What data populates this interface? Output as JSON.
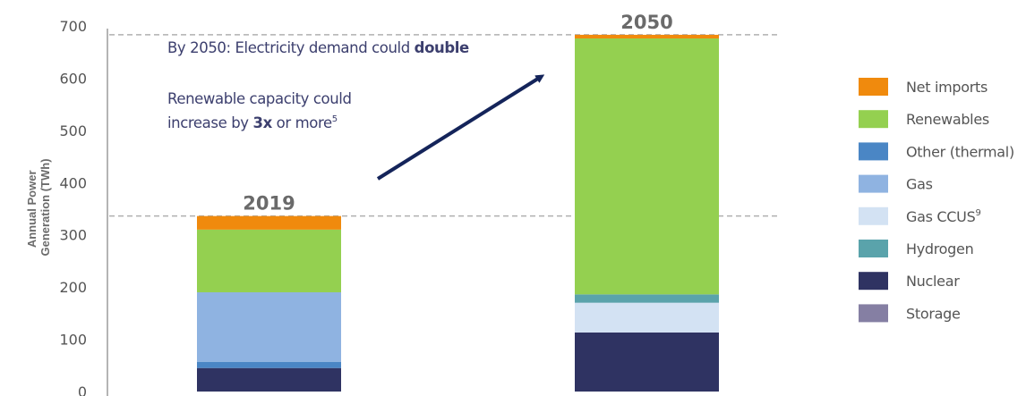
{
  "chart_data": {
    "type": "bar",
    "stacked": true,
    "categories": [
      "2019",
      "2050"
    ],
    "ylabel": "Annual Power Generation (TWh)",
    "ylim": [
      0,
      700
    ],
    "yticks": [
      0,
      100,
      200,
      300,
      400,
      500,
      600,
      700
    ],
    "series": [
      {
        "name": "Storage",
        "color": "#857fa3",
        "values": [
          0,
          0
        ]
      },
      {
        "name": "Nuclear",
        "color": "#2f3362",
        "values": [
          45,
          113
        ]
      },
      {
        "name": "Hydrogen",
        "color": "#5aa3ab",
        "values": [
          0,
          0
        ]
      },
      {
        "name": "Gas CCUS",
        "legend_sup": "9",
        "color": "#d3e2f3",
        "values": [
          0,
          57
        ]
      },
      {
        "name": "Other (thermal)",
        "color": "#4a86c5",
        "values": [
          12,
          0
        ]
      },
      {
        "name": "Gas",
        "color": "#8fb3e1",
        "values": [
          133,
          0
        ]
      },
      {
        "name": "Hydrogen",
        "color": "#5aa3ab",
        "values": [
          0,
          16
        ]
      },
      {
        "name": "Renewables",
        "color": "#94d050",
        "values": [
          120,
          490
        ]
      },
      {
        "name": "Net imports",
        "color": "#f08a0d",
        "values": [
          26,
          7
        ]
      }
    ],
    "legend": [
      {
        "label": "Net imports",
        "sup": "",
        "color": "#f08a0d"
      },
      {
        "label": "Renewables",
        "sup": "",
        "color": "#94d050"
      },
      {
        "label": "Other (thermal)",
        "sup": "",
        "color": "#4a86c5"
      },
      {
        "label": "Gas",
        "sup": "",
        "color": "#8fb3e1"
      },
      {
        "label": "Gas CCUS",
        "sup": "9",
        "color": "#d3e2f3"
      },
      {
        "label": "Hydrogen",
        "sup": "",
        "color": "#5aa3ab"
      },
      {
        "label": "Nuclear",
        "sup": "",
        "color": "#2f3362"
      },
      {
        "label": "Storage",
        "sup": "",
        "color": "#857fa3"
      }
    ],
    "legend_position": "right",
    "reference_lines": [
      {
        "label": "2019",
        "value": 336
      },
      {
        "label": "2050",
        "value": 683
      }
    ],
    "annotations": {
      "line1_pre": "By 2050: Electricity demand could ",
      "line1_bold": "double",
      "line2": "Renewable capacity could",
      "line3_pre": "increase by ",
      "line3_bold": "3x",
      "line3_post": " or more",
      "line3_sup": "5"
    },
    "colors": {
      "axis": "#b5b5b5",
      "refline": "#b0b0b0",
      "arrow": "#14245a"
    }
  }
}
